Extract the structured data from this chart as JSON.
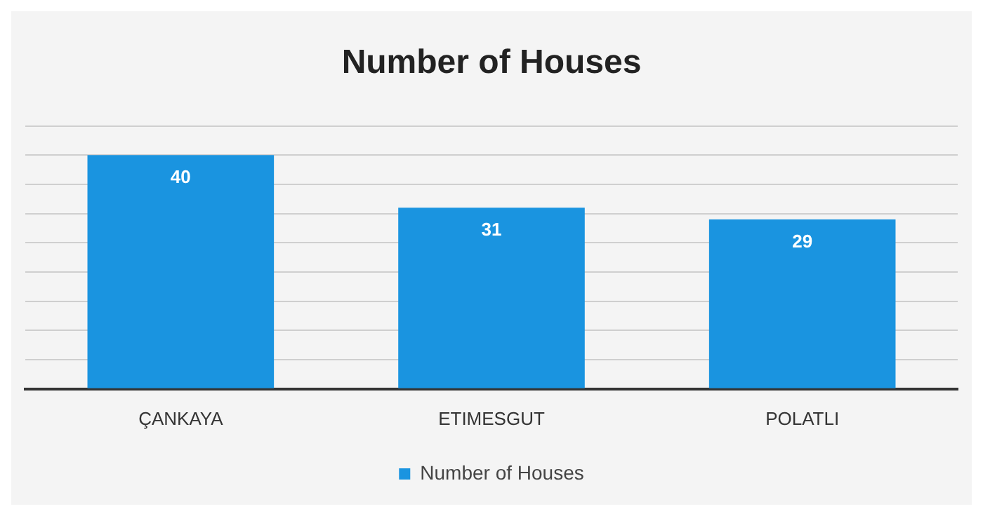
{
  "chart_data": {
    "type": "bar",
    "title": "Number of Houses",
    "categories": [
      "ÇANKAYA",
      "ETIMESGUT",
      "POLATLI"
    ],
    "series": [
      {
        "name": "Number of Houses",
        "color": "#1a94e0",
        "values": [
          40,
          31,
          29
        ]
      }
    ],
    "ylim": [
      0,
      45
    ],
    "yticks": [
      {
        "value": 0,
        "label": null
      },
      {
        "value": 5,
        "label": null
      },
      {
        "value": 10,
        "label": null
      },
      {
        "value": 15,
        "label": null
      },
      {
        "value": 20,
        "label": null
      },
      {
        "value": 25,
        "label": null
      },
      {
        "value": 30,
        "label": null
      },
      {
        "value": 35,
        "label": null
      },
      {
        "value": 40,
        "label": null
      },
      {
        "value": 45,
        "label": null
      }
    ],
    "grid": "y",
    "tick_labels": "x",
    "legend": "bottom",
    "data_labels": true
  }
}
